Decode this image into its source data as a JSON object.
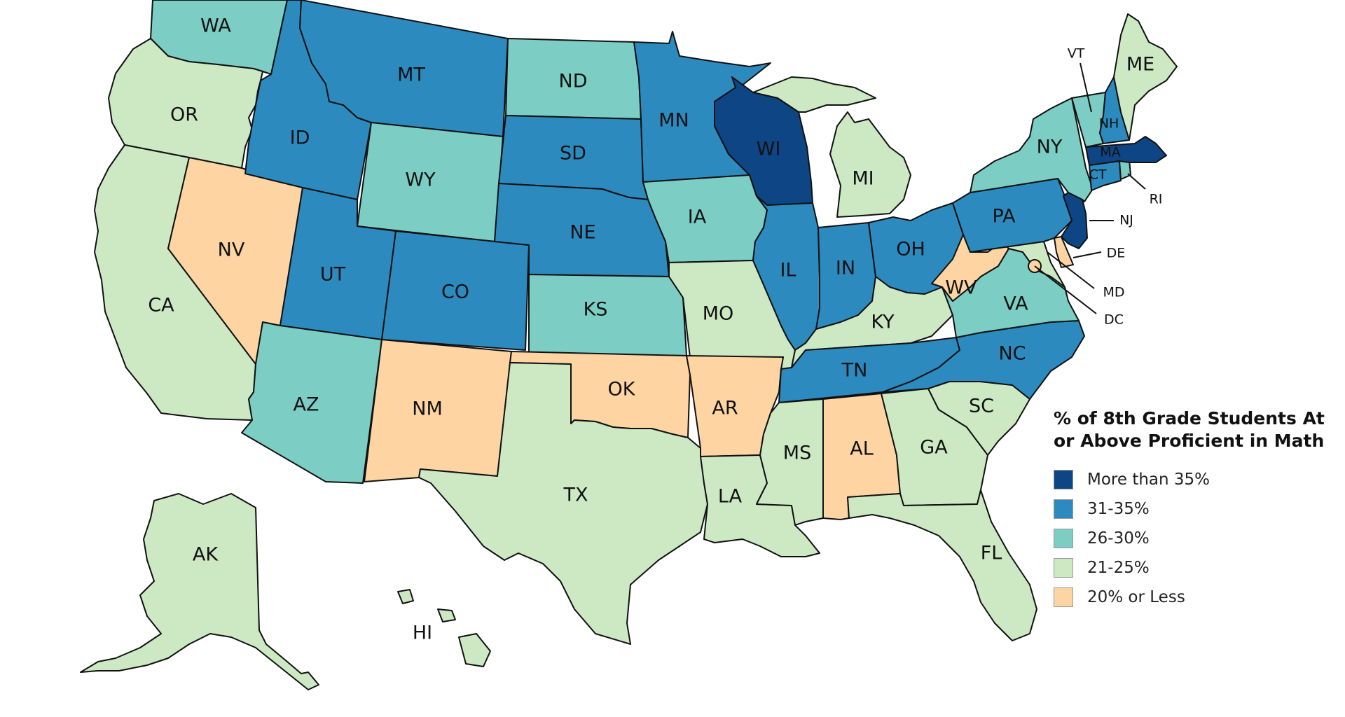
{
  "legend": {
    "title_line1": "% of 8th Grade Students At",
    "title_line2": "or Above Proficient in Math",
    "items": [
      {
        "label": "More than 35%",
        "color": "#0e4584"
      },
      {
        "label": "31-35%",
        "color": "#2c8abf"
      },
      {
        "label": "26-30%",
        "color": "#7ccdc4"
      },
      {
        "label": "21-25%",
        "color": "#cce9c4"
      },
      {
        "label": "20% or Less",
        "color": "#fdd4a2"
      }
    ]
  },
  "states": {
    "WA": {
      "label": "WA",
      "category": 2
    },
    "OR": {
      "label": "OR",
      "category": 3
    },
    "CA": {
      "label": "CA",
      "category": 3
    },
    "NV": {
      "label": "NV",
      "category": 4
    },
    "ID": {
      "label": "ID",
      "category": 1
    },
    "MT": {
      "label": "MT",
      "category": 1
    },
    "WY": {
      "label": "WY",
      "category": 2
    },
    "UT": {
      "label": "UT",
      "category": 1
    },
    "CO": {
      "label": "CO",
      "category": 1
    },
    "AZ": {
      "label": "AZ",
      "category": 2
    },
    "NM": {
      "label": "NM",
      "category": 4
    },
    "ND": {
      "label": "ND",
      "category": 2
    },
    "SD": {
      "label": "SD",
      "category": 1
    },
    "NE": {
      "label": "NE",
      "category": 1
    },
    "KS": {
      "label": "KS",
      "category": 2
    },
    "OK": {
      "label": "OK",
      "category": 4
    },
    "TX": {
      "label": "TX",
      "category": 3
    },
    "MN": {
      "label": "MN",
      "category": 1
    },
    "IA": {
      "label": "IA",
      "category": 2
    },
    "MO": {
      "label": "MO",
      "category": 3
    },
    "AR": {
      "label": "AR",
      "category": 4
    },
    "LA": {
      "label": "LA",
      "category": 3
    },
    "WI": {
      "label": "WI",
      "category": 0
    },
    "IL": {
      "label": "IL",
      "category": 1
    },
    "MI": {
      "label": "MI",
      "category": 3
    },
    "IN": {
      "label": "IN",
      "category": 1
    },
    "OH": {
      "label": "OH",
      "category": 1
    },
    "KY": {
      "label": "KY",
      "category": 3
    },
    "TN": {
      "label": "TN",
      "category": 1
    },
    "MS": {
      "label": "MS",
      "category": 3
    },
    "AL": {
      "label": "AL",
      "category": 4
    },
    "GA": {
      "label": "GA",
      "category": 3
    },
    "FL": {
      "label": "FL",
      "category": 3
    },
    "SC": {
      "label": "SC",
      "category": 3
    },
    "NC": {
      "label": "NC",
      "category": 1
    },
    "VA": {
      "label": "VA",
      "category": 2
    },
    "WV": {
      "label": "WV",
      "category": 4
    },
    "PA": {
      "label": "PA",
      "category": 1
    },
    "NY": {
      "label": "NY",
      "category": 2
    },
    "NJ": {
      "label": "NJ",
      "category": 0
    },
    "DE": {
      "label": "DE",
      "category": 4
    },
    "MD": {
      "label": "MD",
      "category": 3
    },
    "DC": {
      "label": "DC",
      "category": 4
    },
    "CT": {
      "label": "CT",
      "category": 1
    },
    "RI": {
      "label": "RI",
      "category": 2
    },
    "MA": {
      "label": "MA",
      "category": 0
    },
    "VT": {
      "label": "VT",
      "category": 2
    },
    "NH": {
      "label": "NH",
      "category": 1
    },
    "ME": {
      "label": "ME",
      "category": 3
    },
    "AK": {
      "label": "AK",
      "category": 3
    },
    "HI": {
      "label": "HI",
      "category": 3
    }
  }
}
